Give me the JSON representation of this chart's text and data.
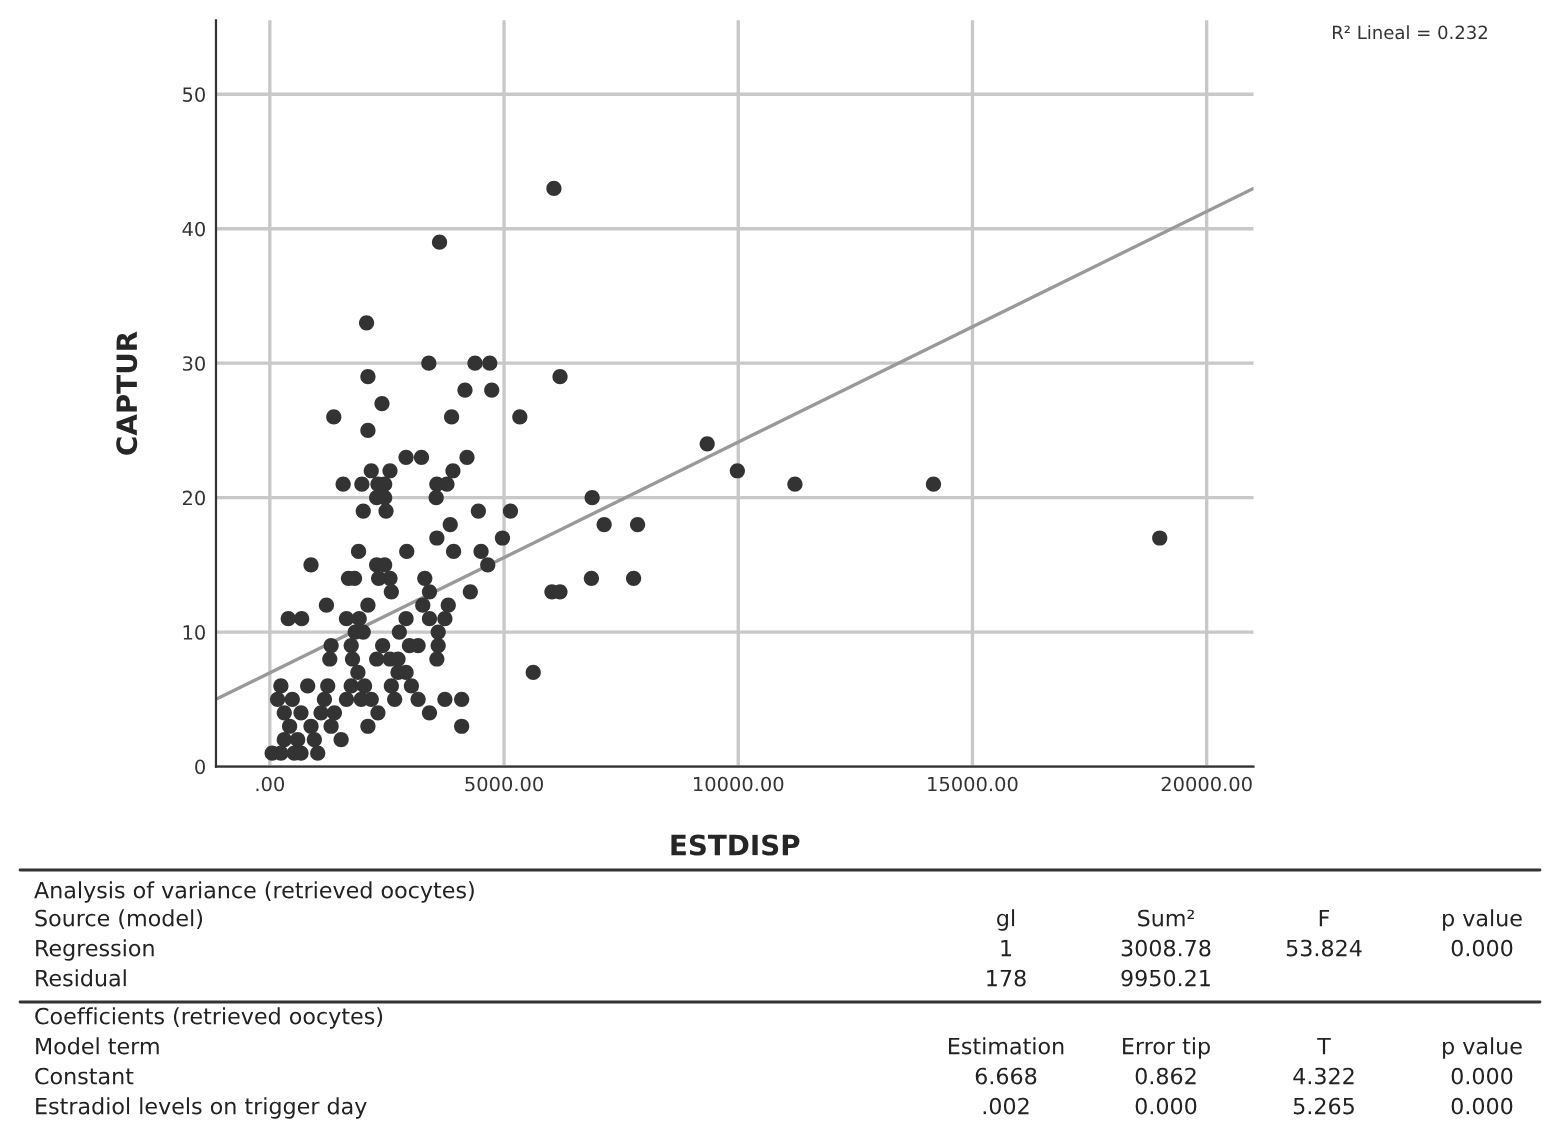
{
  "chart_data": {
    "type": "scatter",
    "xlabel": "ESTDISP",
    "ylabel": "CAPTUR",
    "xlim": [
      -1150,
      21000
    ],
    "ylim": [
      0,
      55.5
    ],
    "xticks": [
      {
        "value": 0,
        "label": ".00"
      },
      {
        "value": 5000,
        "label": "5000.00"
      },
      {
        "value": 10000,
        "label": "10000.00"
      },
      {
        "value": 15000,
        "label": "15000.00"
      },
      {
        "value": 20000,
        "label": "20000.00"
      }
    ],
    "yticks": [
      0,
      10,
      20,
      30,
      40,
      50
    ],
    "grid": true,
    "series": [
      {
        "color": "#333333",
        "marker": "circle",
        "x": [
          3623,
          2065,
          3394,
          4380,
          4695,
          2094,
          6195,
          4166,
          4737,
          2394,
          1365,
          3880,
          5337,
          2094,
          2908,
          3237,
          4209,
          2165,
          2565,
          3909,
          1565,
          1965,
          2308,
          2451,
          3566,
          3780,
          2280,
          2451,
          3551,
          6881,
          1994,
          2480,
          4452,
          5137,
          3851,
          3566,
          4966,
          1894,
          2923,
          3923,
          4509,
          879,
          2280,
          2451,
          4652,
          1679,
          1808,
          2323,
          2565,
          3308,
          2594,
          3408,
          4280,
          1208,
          2094,
          3265,
          3809,
          393,
          679,
          1636,
          1908,
          2908,
          3408,
          3737,
          1822,
          1994,
          2765,
          3594,
          1308,
          1737,
          2408,
          2980,
          3165,
          3594,
          1280,
          1765,
          2280,
          2565,
          2737,
          3566,
          1880,
          2737,
          2908,
          5623,
          236,
          808,
          1236,
          1737,
          2022,
          2594,
          3022,
          165,
          479,
          1165,
          1636,
          1951,
          2165,
          2665,
          3165,
          3737,
          4095,
          308,
          665,
          1093,
          1379,
          2308,
          3408,
          422,
          879,
          1308,
          2094,
          4095,
          308,
          594,
          950,
          1522,
          50,
          236,
          522,
          665,
          1022,
          6065,
          9337,
          9981,
          11210,
          14168,
          7137,
          7851,
          18998,
          6865,
          7766,
          6022,
          6194
        ],
        "values": [
          39,
          33,
          30,
          30,
          30,
          29,
          29,
          28,
          28,
          27,
          26,
          26,
          26,
          25,
          23,
          23,
          23,
          22,
          22,
          22,
          21,
          21,
          21,
          21,
          21,
          21,
          20,
          20,
          20,
          20,
          19,
          19,
          19,
          19,
          18,
          17,
          17,
          16,
          16,
          16,
          16,
          15,
          15,
          15,
          15,
          14,
          14,
          14,
          14,
          14,
          13,
          13,
          13,
          12,
          12,
          12,
          12,
          11,
          11,
          11,
          11,
          11,
          11,
          11,
          10,
          10,
          10,
          10,
          9,
          9,
          9,
          9,
          9,
          9,
          8,
          8,
          8,
          8,
          8,
          8,
          7,
          7,
          7,
          7,
          6,
          6,
          6,
          6,
          6,
          6,
          6,
          5,
          5,
          5,
          5,
          5,
          5,
          5,
          5,
          5,
          5,
          4,
          4,
          4,
          4,
          4,
          4,
          3,
          3,
          3,
          3,
          3,
          2,
          2,
          2,
          2,
          1,
          1,
          1,
          1,
          1,
          43,
          24,
          22,
          21,
          21,
          18,
          18,
          17,
          14,
          14,
          13,
          13
        ]
      },
      {
        "type": "line",
        "color": "#999999",
        "x": [
          -1150,
          21000
        ],
        "values": [
          5,
          43
        ]
      }
    ],
    "annotations": [
      "R² Lineal = 0.232",
      "Analysis of variance (retrieved oocytes)",
      "Source (model)",
      "gl",
      "Sum²",
      "F",
      "p value",
      "Regression",
      "1",
      "3008.78",
      "53.824",
      "0.000",
      "Residual",
      "178",
      "9950.21",
      "Coefficients (retrieved oocytes)",
      "Model term",
      "Estimation",
      "Error tip",
      "T",
      "p value",
      "Constant",
      "6.668",
      "0.862",
      "4.322",
      "0.000",
      "Estradiol levels on trigger day",
      ".002",
      "0.000",
      "5.265",
      "0.000"
    ]
  }
}
